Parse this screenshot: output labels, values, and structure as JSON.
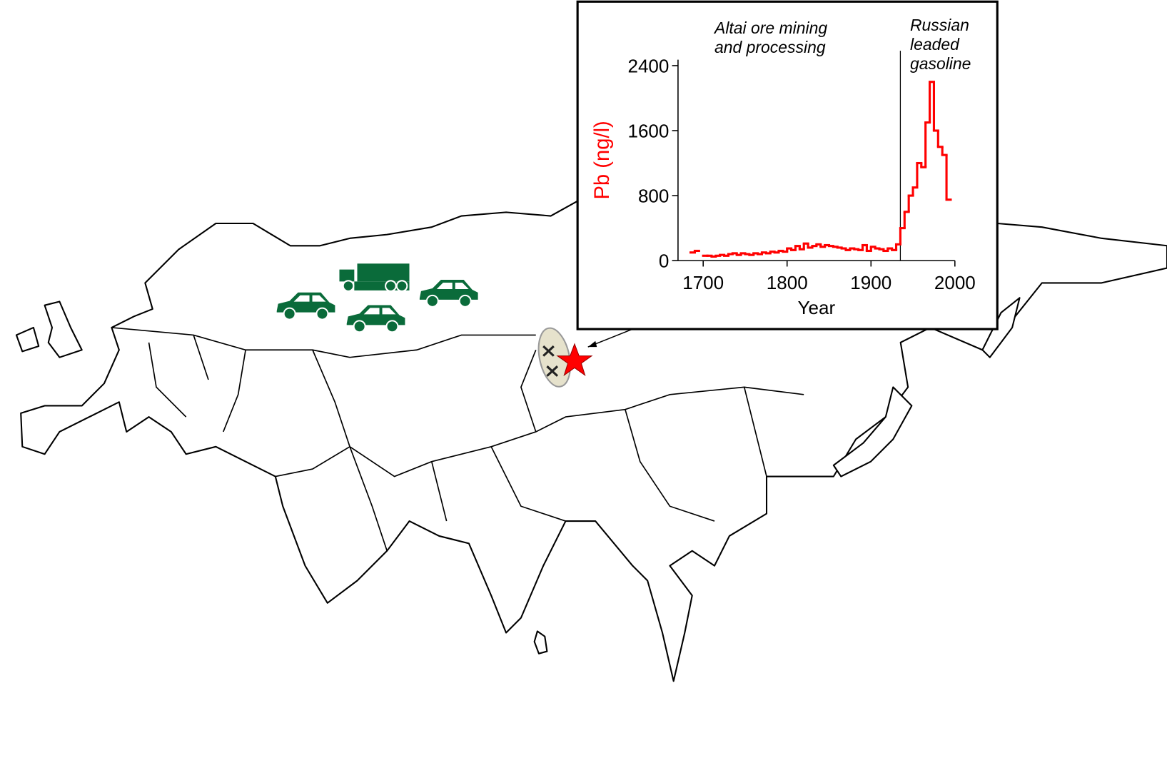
{
  "chart_data": {
    "type": "step",
    "x": [
      1685,
      1690,
      1695,
      1700,
      1705,
      1710,
      1715,
      1720,
      1725,
      1730,
      1735,
      1740,
      1745,
      1750,
      1755,
      1760,
      1765,
      1770,
      1775,
      1780,
      1785,
      1790,
      1795,
      1800,
      1805,
      1810,
      1815,
      1820,
      1825,
      1830,
      1835,
      1840,
      1845,
      1850,
      1855,
      1860,
      1865,
      1870,
      1875,
      1880,
      1885,
      1890,
      1895,
      1900,
      1905,
      1910,
      1915,
      1920,
      1925,
      1930,
      1935,
      1940,
      1945,
      1950,
      1955,
      1960,
      1965,
      1970,
      1975,
      1980,
      1985,
      1990
    ],
    "series": [
      {
        "color": "#ff0000",
        "values": [
          100,
          120,
          null,
          60,
          60,
          50,
          60,
          70,
          60,
          80,
          90,
          70,
          90,
          80,
          70,
          90,
          80,
          100,
          90,
          110,
          100,
          120,
          110,
          150,
          130,
          180,
          140,
          210,
          160,
          180,
          200,
          170,
          190,
          180,
          170,
          160,
          150,
          130,
          150,
          140,
          130,
          190,
          120,
          170,
          150,
          140,
          120,
          150,
          130,
          200,
          400,
          600,
          800,
          900,
          1200,
          1150,
          1700,
          2200,
          1600,
          1400,
          1300,
          750
        ]
      }
    ],
    "xlabel": "Year",
    "ylabel": "Pb (ng/l)",
    "ylabel_color": "#ff0000",
    "xlim": [
      1670,
      2000
    ],
    "ylim": [
      0,
      2400
    ],
    "xticks": [
      1700,
      1800,
      1900,
      2000
    ],
    "yticks": [
      0,
      800,
      1600,
      2400
    ],
    "annotations": [
      {
        "lines": [
          "Altai ore mining",
          "and processing"
        ]
      },
      {
        "x": 1935,
        "lines": [
          "Russian",
          "leaded",
          "gasoline"
        ]
      }
    ]
  }
}
